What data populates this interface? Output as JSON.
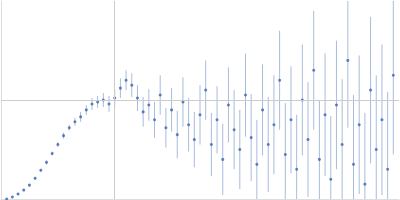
{
  "chart_data": {
    "type": "scatter",
    "color": "#3a64b0",
    "marker": "circle",
    "grid": true,
    "tick_labels": false,
    "xlim": [
      0,
      0.35
    ],
    "xticks": [
      0.1
    ],
    "ylim": [
      0,
      2
    ],
    "yticks": [
      1
    ],
    "x": [
      0.005,
      0.01,
      0.015,
      0.02,
      0.025,
      0.03,
      0.035,
      0.04,
      0.045,
      0.05,
      0.055,
      0.06,
      0.065,
      0.07,
      0.075,
      0.08,
      0.085,
      0.09,
      0.095,
      0.1,
      0.105,
      0.11,
      0.115,
      0.12,
      0.125,
      0.13,
      0.135,
      0.14,
      0.145,
      0.15,
      0.155,
      0.16,
      0.165,
      0.17,
      0.175,
      0.18,
      0.185,
      0.19,
      0.195,
      0.2,
      0.205,
      0.21,
      0.215,
      0.22,
      0.225,
      0.23,
      0.235,
      0.24,
      0.245,
      0.25,
      0.255,
      0.26,
      0.265,
      0.27,
      0.275,
      0.28,
      0.285,
      0.29,
      0.295,
      0.3,
      0.305,
      0.31,
      0.315,
      0.32,
      0.325,
      0.33,
      0.335,
      0.34,
      0.345
    ],
    "values": [
      0.0,
      0.02,
      0.05,
      0.09,
      0.14,
      0.21,
      0.29,
      0.37,
      0.46,
      0.55,
      0.64,
      0.72,
      0.78,
      0.83,
      0.9,
      0.96,
      0.98,
      1.0,
      0.96,
      1.02,
      1.12,
      1.2,
      1.15,
      1.02,
      0.88,
      0.95,
      0.8,
      1.05,
      0.72,
      0.9,
      0.65,
      0.98,
      0.75,
      0.6,
      0.85,
      1.1,
      0.55,
      0.8,
      0.4,
      0.95,
      0.7,
      0.5,
      1.05,
      0.62,
      0.35,
      0.9,
      0.55,
      0.75,
      1.2,
      0.45,
      0.8,
      0.3,
      1.0,
      0.6,
      1.3,
      0.4,
      0.85,
      0.2,
      0.95,
      0.55,
      1.4,
      0.35,
      0.75,
      0.15,
      1.1,
      0.5,
      0.8,
      0.3,
      1.25
    ],
    "errors": [
      0.005,
      0.005,
      0.01,
      0.01,
      0.01,
      0.015,
      0.015,
      0.02,
      0.02,
      0.025,
      0.03,
      0.03,
      0.04,
      0.05,
      0.05,
      0.06,
      0.06,
      0.07,
      0.08,
      0.09,
      0.1,
      0.1,
      0.12,
      0.13,
      0.15,
      0.16,
      0.18,
      0.2,
      0.2,
      0.22,
      0.24,
      0.25,
      0.27,
      0.28,
      0.3,
      0.3,
      0.32,
      0.34,
      0.36,
      0.38,
      0.4,
      0.4,
      0.42,
      0.44,
      0.45,
      0.46,
      0.48,
      0.5,
      0.5,
      0.52,
      0.54,
      0.55,
      0.56,
      0.58,
      0.6,
      0.6,
      0.62,
      0.64,
      0.65,
      0.66,
      0.68,
      0.7,
      0.7,
      0.72,
      0.74,
      0.75,
      0.76,
      0.78,
      0.8
    ]
  }
}
